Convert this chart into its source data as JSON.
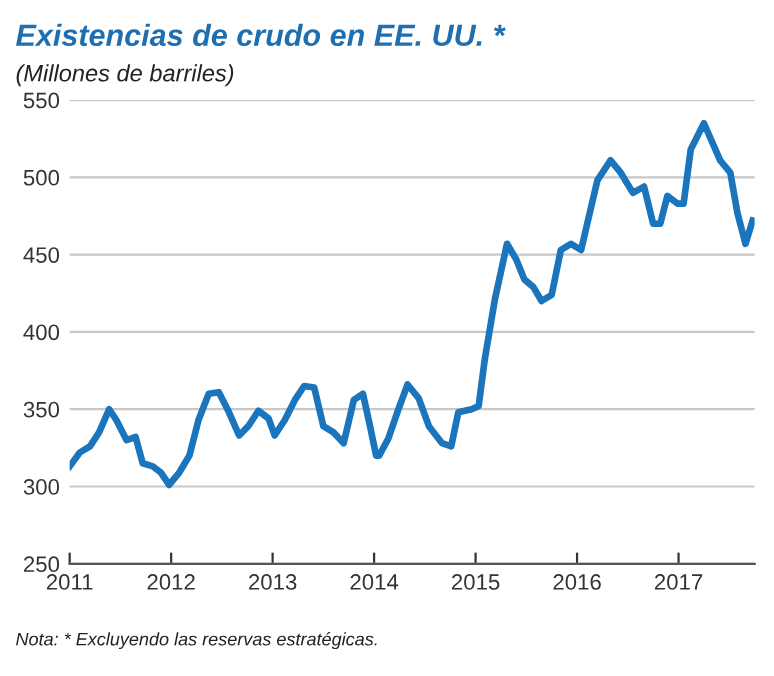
{
  "chart_data": {
    "type": "line",
    "title": "Existencias de crudo en EE. UU. *",
    "subtitle": "(Millones de barriles)",
    "x": [
      2011.0,
      2011.1,
      2011.2,
      2011.29,
      2011.39,
      2011.46,
      2011.56,
      2011.65,
      2011.72,
      2011.82,
      2011.9,
      2011.98,
      2012.08,
      2012.18,
      2012.27,
      2012.37,
      2012.47,
      2012.57,
      2012.67,
      2012.76,
      2012.86,
      2012.96,
      2013.02,
      2013.12,
      2013.22,
      2013.31,
      2013.41,
      2013.5,
      2013.6,
      2013.7,
      2013.8,
      2013.89,
      2013.96,
      2014.02,
      2014.05,
      2014.14,
      2014.24,
      2014.33,
      2014.44,
      2014.54,
      2014.67,
      2014.76,
      2014.83,
      2014.96,
      2015.03,
      2015.09,
      2015.19,
      2015.31,
      2015.4,
      2015.48,
      2015.57,
      2015.65,
      2015.75,
      2015.84,
      2015.94,
      2016.04,
      2016.1,
      2016.2,
      2016.33,
      2016.43,
      2016.55,
      2016.66,
      2016.75,
      2016.82,
      2016.89,
      2016.99,
      2017.05,
      2017.12,
      2017.25,
      2017.41,
      2017.51,
      2017.58,
      2017.66,
      2017.73
    ],
    "series": [
      {
        "color": "#1a75bc",
        "values": [
          313,
          322,
          326,
          335,
          350,
          343,
          330,
          332,
          315,
          313,
          309,
          301,
          309,
          320,
          343,
          360,
          361,
          348,
          333,
          339,
          349,
          344,
          333,
          343,
          356,
          365,
          364,
          339,
          335,
          328,
          356,
          360,
          339,
          320,
          320,
          331,
          350,
          366,
          357,
          339,
          328,
          326,
          348,
          350,
          352,
          382,
          421,
          457,
          447,
          434,
          429,
          420,
          424,
          453,
          457,
          453,
          470,
          498,
          511,
          503,
          490,
          494,
          470,
          470,
          488,
          483,
          483,
          518,
          535,
          511,
          503,
          477,
          457,
          472
        ]
      }
    ],
    "xlim": [
      2011,
      2017.75
    ],
    "xticks": [
      2011,
      2012,
      2013,
      2014,
      2015,
      2016,
      2017
    ],
    "ylim": [
      250,
      550
    ],
    "yticks": [
      250,
      300,
      350,
      400,
      450,
      500,
      550
    ],
    "grid": "y",
    "legend": false,
    "annotations": [
      "Nota: * Excluyendo las reservas estratégicas."
    ]
  }
}
